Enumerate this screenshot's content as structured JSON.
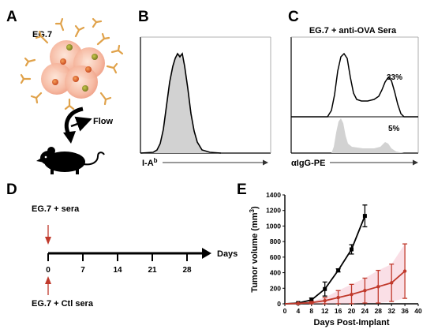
{
  "panels": {
    "a": {
      "letter": "A",
      "cell_label": "EG.7",
      "flow_label": "Flow",
      "icons": [
        "tumor-cell-cluster-icon",
        "antibody-icon",
        "curved-arrow-icon",
        "mouse-icon"
      ]
    },
    "b": {
      "letter": "B",
      "xlabel_main": "I-A",
      "xlabel_sup": "b",
      "fill_color": "#d2d2d2"
    },
    "c": {
      "letter": "C",
      "title": "EG.7 + anti-OVA Sera",
      "xlabel": "αIgG-PE",
      "upper_pct": "33%",
      "lower_pct": "5%",
      "fill_color": "#d2d2d2"
    },
    "d": {
      "letter": "D",
      "top_label": "EG.7 + sera",
      "bottom_label": "EG.7 + Ctl sera",
      "axis_label": "Days",
      "ticks": [
        "0",
        "7",
        "14",
        "21",
        "28"
      ],
      "arrow_color": "#c0392b"
    },
    "e": {
      "letter": "E"
    }
  },
  "chart_data": [
    {
      "type": "line",
      "ylabel_main": "Tumor volume (mm",
      "ylabel_sup": "3",
      "ylabel_end": ")",
      "xlabel": "Days Post-Implant",
      "xlim": [
        0,
        40
      ],
      "ylim": [
        0,
        1400
      ],
      "xticks": [
        0,
        4,
        8,
        12,
        16,
        20,
        24,
        28,
        32,
        36,
        40
      ],
      "yticks": [
        0,
        200,
        400,
        600,
        800,
        1000,
        1200,
        1400
      ],
      "grid": false,
      "series": [
        {
          "color": "#000000",
          "x": [
            4,
            8,
            12,
            16,
            20,
            24
          ],
          "y": [
            10,
            50,
            190,
            430,
            700,
            1130
          ],
          "err": [
            8,
            25,
            90,
            20,
            60,
            140
          ]
        },
        {
          "color": "#c0392b",
          "x": [
            4,
            8,
            12,
            16,
            20,
            24,
            28,
            32,
            36
          ],
          "y": [
            5,
            15,
            40,
            80,
            120,
            170,
            220,
            270,
            420
          ],
          "err": [
            5,
            15,
            40,
            90,
            130,
            160,
            210,
            240,
            350
          ]
        }
      ]
    }
  ]
}
